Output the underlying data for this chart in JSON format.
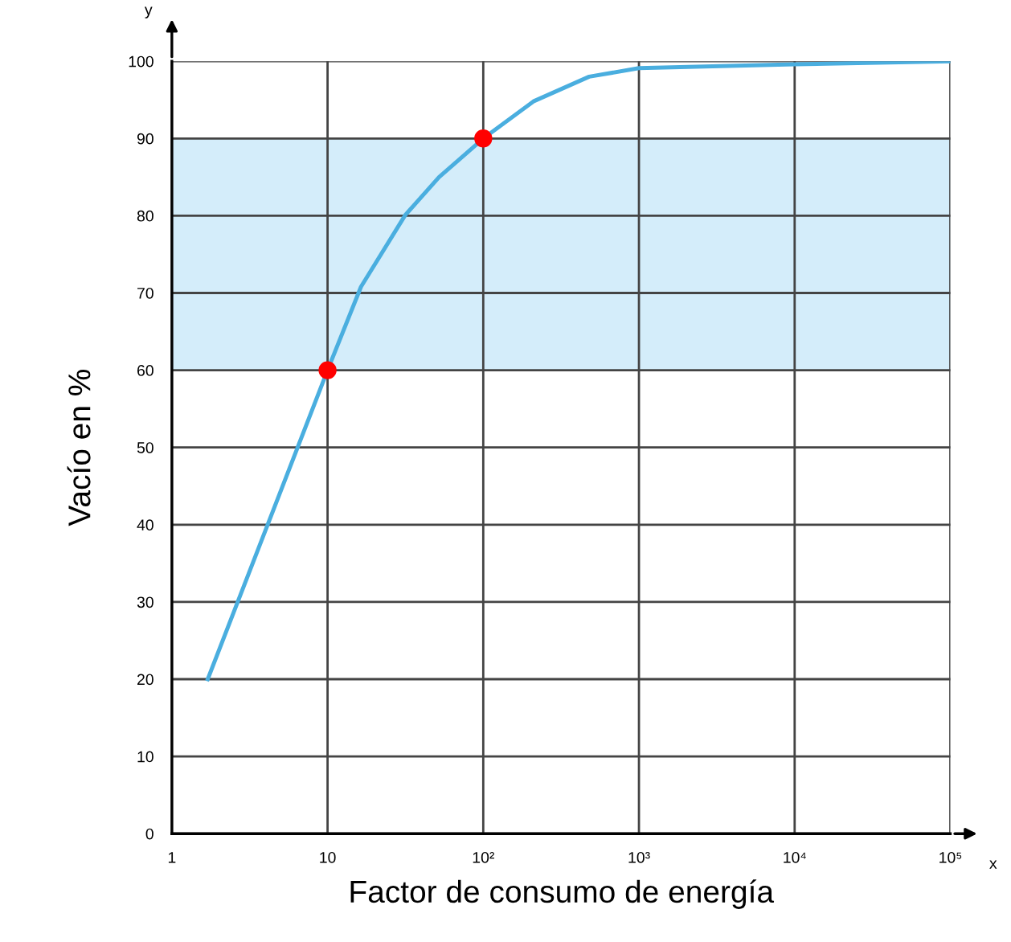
{
  "chart_data": {
    "type": "line",
    "xlabel": "Factor de consumo de energía",
    "ylabel": "Vacío en %",
    "log": "x",
    "xlim": [
      1,
      100000
    ],
    "xticks": [
      1,
      10,
      {
        "value": 100,
        "label": "10²"
      },
      {
        "value": 1000,
        "label": "10³"
      },
      {
        "value": 10000,
        "label": "10⁴"
      },
      {
        "value": 100000,
        "label": "10⁵"
      }
    ],
    "ylim": [
      0,
      100
    ],
    "yticks": [
      0,
      10,
      20,
      30,
      40,
      50,
      60,
      70,
      80,
      90,
      100
    ],
    "grid": true,
    "line_style": "solid",
    "series": [
      {
        "marker": "none",
        "color": "#4aaedf",
        "x": [
          1.7,
          10,
          16.4,
          31.6,
          52,
          100,
          210,
          479,
          1000,
          10000,
          100000
        ],
        "values": [
          20,
          60,
          70.8,
          80.1,
          85,
          90,
          94.8,
          98,
          99.1,
          99.6,
          100
        ]
      },
      {
        "type": "scatter",
        "marker": "circle",
        "color": "#ff0000",
        "x": [
          10,
          100
        ],
        "values": [
          60,
          90
        ]
      }
    ],
    "bands": [
      {
        "axis": "y",
        "from": 60,
        "to": 90,
        "color": "#d4edfa"
      }
    ],
    "annotations": [
      "y",
      "x"
    ]
  }
}
